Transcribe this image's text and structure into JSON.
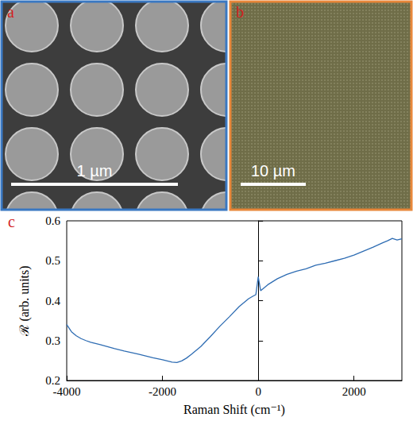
{
  "panels": [
    {
      "letter": "a",
      "scale_bar": "1 µm"
    },
    {
      "letter": "b",
      "scale_bar": "10 µm"
    },
    {
      "letter": "c"
    }
  ],
  "chart_data": {
    "type": "line",
    "x_label": "Raman Shift (cm⁻¹)",
    "y_label": "ℛ (arb. units)",
    "x": [
      -4000,
      -3900,
      -3800,
      -3700,
      -3600,
      -3500,
      -3300,
      -3000,
      -2800,
      -2500,
      -2200,
      -2000,
      -1800,
      -1700,
      -1600,
      -1500,
      -1400,
      -1200,
      -1000,
      -800,
      -600,
      -400,
      -200,
      -100,
      -50,
      0,
      50,
      100,
      200,
      400,
      600,
      800,
      1000,
      1200,
      1400,
      1600,
      1800,
      2000,
      2200,
      2400,
      2600,
      2700,
      2800,
      2900,
      3000
    ],
    "values": [
      0.34,
      0.322,
      0.312,
      0.305,
      0.3,
      0.296,
      0.29,
      0.28,
      0.274,
      0.266,
      0.257,
      0.252,
      0.246,
      0.245,
      0.249,
      0.256,
      0.265,
      0.285,
      0.31,
      0.336,
      0.36,
      0.385,
      0.405,
      0.412,
      0.415,
      0.46,
      0.425,
      0.43,
      0.44,
      0.455,
      0.466,
      0.474,
      0.48,
      0.489,
      0.494,
      0.5,
      0.506,
      0.514,
      0.524,
      0.534,
      0.545,
      0.55,
      0.556,
      0.552,
      0.555
    ],
    "color": "#2f6db3",
    "xlim": [
      -4000,
      3000
    ],
    "xticks": [
      -4000,
      -2000,
      0,
      2000
    ],
    "ylim": [
      0.2,
      0.6
    ],
    "yticks": [
      0.2,
      0.3,
      0.4,
      0.5,
      0.6
    ],
    "grid": false
  }
}
